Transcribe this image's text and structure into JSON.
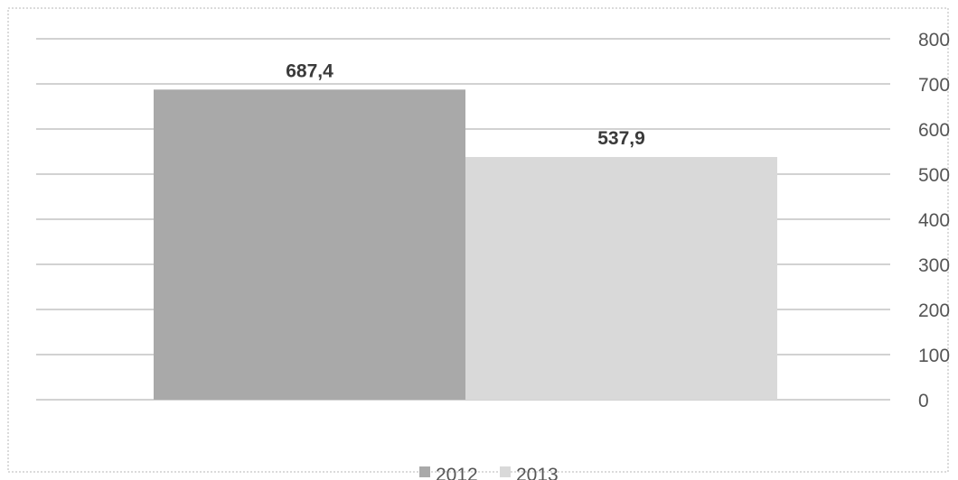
{
  "chart_data": {
    "type": "bar",
    "title": "",
    "xlabel": "",
    "ylabel": "",
    "categories": [
      ""
    ],
    "series": [
      {
        "name": "2012",
        "values": [
          687.4
        ],
        "label": "687,4",
        "color": "#a9a9a9"
      },
      {
        "name": "2013",
        "values": [
          537.9
        ],
        "label": "537,9",
        "color": "#d9d9d9"
      }
    ],
    "ylim": [
      0,
      800
    ],
    "y_ticks": [
      0,
      100,
      200,
      300,
      400,
      500,
      600,
      700,
      800
    ],
    "y_axis_side": "right",
    "grid": true,
    "legend": {
      "placement": "bottom-center",
      "entries": [
        "2012",
        "2013"
      ]
    }
  }
}
